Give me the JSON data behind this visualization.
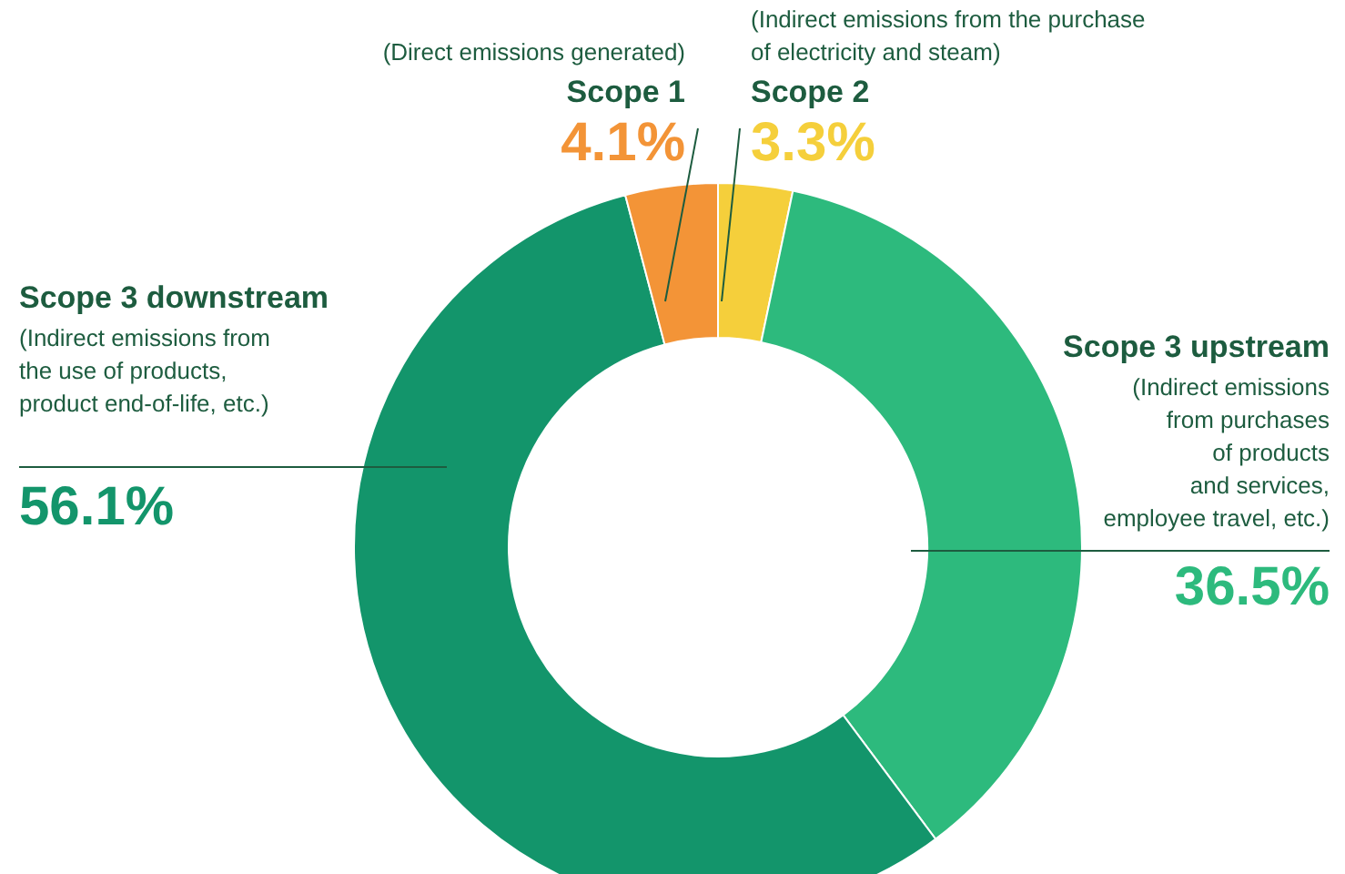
{
  "chart_data": {
    "type": "donut",
    "categories": [
      "Scope 2",
      "Scope 3 upstream",
      "Scope 3 downstream",
      "Scope 1"
    ],
    "values": [
      3.3,
      36.5,
      56.1,
      4.1
    ],
    "colors": [
      "#f5cf3b",
      "#2dba7d",
      "#13956b",
      "#f39437"
    ],
    "value_labels": [
      "3.3%",
      "36.5%",
      "56.1%",
      "4.1%"
    ],
    "annotations": [
      "(Indirect emissions from the purchase\nof electricity and steam)",
      "(Indirect emissions\nfrom purchases\nof products\nand services,\nemployee travel, etc.)",
      "(Indirect emissions from\nthe use of products,\nproduct end-of-life, etc.)",
      "(Direct emissions generated)"
    ]
  }
}
